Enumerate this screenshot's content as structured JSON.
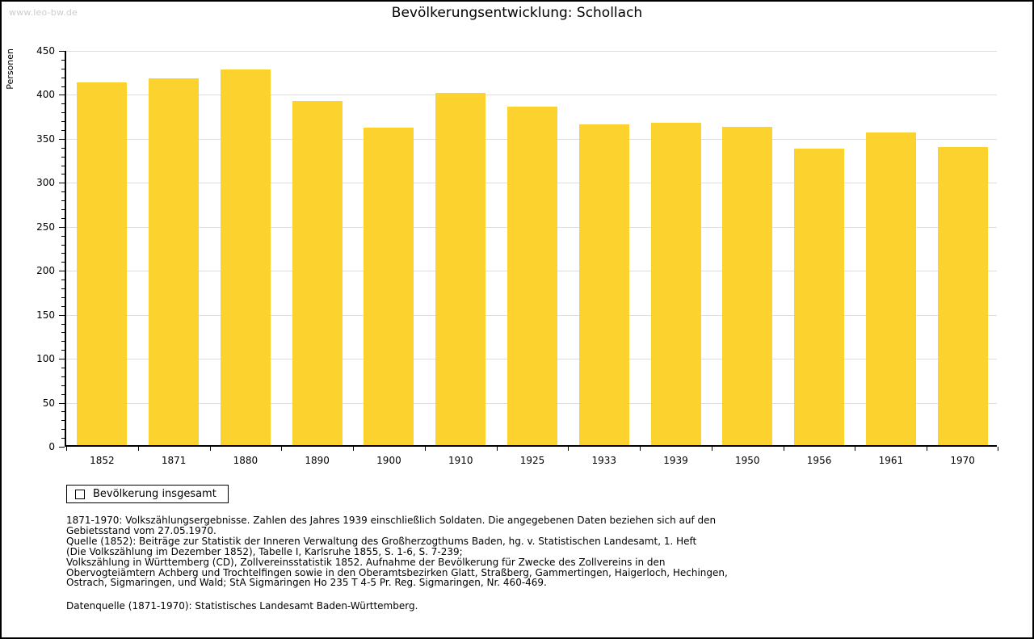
{
  "watermark": "www.leo-bw.de",
  "title": "Bevölkerungsentwicklung: Schollach",
  "legend": {
    "label": "Bevölkerung insgesamt"
  },
  "chart_data": {
    "type": "bar",
    "title": "Bevölkerungsentwicklung: Schollach",
    "xlabel": "",
    "ylabel": "Personen",
    "categories": [
      "1852",
      "1871",
      "1880",
      "1890",
      "1900",
      "1910",
      "1925",
      "1933",
      "1939",
      "1950",
      "1956",
      "1961",
      "1970"
    ],
    "values": [
      412,
      417,
      427,
      391,
      361,
      400,
      385,
      365,
      366,
      362,
      337,
      355,
      339
    ],
    "series_name": "Bevölkerung insgesamt",
    "ylim": [
      0,
      450
    ],
    "ytick_step": 50,
    "y_minor_tick_step": 10,
    "grid": true,
    "legend_position": "bottom-left",
    "bar_color": "#fcd32e"
  },
  "colors": {
    "bar": "#fcd32e",
    "grid": "#dddddd",
    "axis": "#000000",
    "watermark": "#cccccc",
    "background": "#ffffff"
  },
  "footer": {
    "lines": [
      "1871-1970: Volkszählungsergebnisse. Zahlen des Jahres 1939 einschließlich Soldaten. Die angegebenen Daten beziehen sich auf den",
      "Gebietsstand vom 27.05.1970.",
      "Quelle (1852): Beiträge zur Statistik der Inneren Verwaltung des Großherzogthums Baden, hg. v. Statistischen Landesamt, 1. Heft",
      "(Die Volkszählung im Dezember 1852), Tabelle I, Karlsruhe 1855, S. 1-6, S. 7-239;",
      "Volkszählung in Württemberg (CD), Zollvereinsstatistik 1852. Aufnahme der Bevölkerung für Zwecke des Zollvereins in den",
      "Obervogteiämtern Achberg und Trochtelfingen sowie in den Oberamtsbezirken Glatt, Straßberg, Gammertingen, Haigerloch, Hechingen,",
      "Ostrach, Sigmaringen, und Wald; StA Sigmaringen Ho 235 T 4-5 Pr. Reg. Sigmaringen, Nr. 460-469."
    ],
    "datasource": "Datenquelle (1871-1970): Statistisches Landesamt Baden-Württemberg."
  }
}
